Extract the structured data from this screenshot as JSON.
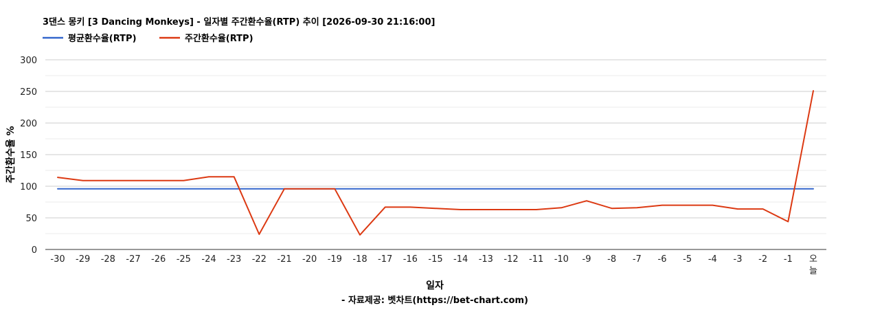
{
  "chart_data": {
    "type": "line",
    "title": "3댄스 몽키 [3 Dancing Monkeys] - 일자별 주간환수율(RTP) 추이 [2026-09-30 21:16:00]",
    "xlabel": "일자",
    "ylabel": "주간환수율 %",
    "footer": "- 자료제공: 벳차트(https://bet-chart.com)",
    "legend_position": "top-left",
    "grid": true,
    "ylim": [
      0,
      300
    ],
    "yticks": [
      "0",
      "50",
      "100",
      "150",
      "200",
      "250",
      "300"
    ],
    "categories": [
      "-30",
      "-29",
      "-28",
      "-27",
      "-26",
      "-25",
      "-24",
      "-23",
      "-22",
      "-21",
      "-20",
      "-19",
      "-18",
      "-17",
      "-16",
      "-15",
      "-14",
      "-13",
      "-12",
      "-11",
      "-10",
      "-9",
      "-8",
      "-7",
      "-6",
      "-5",
      "-4",
      "-3",
      "-2",
      "-1",
      "오늘"
    ],
    "series": [
      {
        "name": "평균환수율(RTP)",
        "color": "#3366cc",
        "values": [
          96,
          96,
          96,
          96,
          96,
          96,
          96,
          96,
          96,
          96,
          96,
          96,
          96,
          96,
          96,
          96,
          96,
          96,
          96,
          96,
          96,
          96,
          96,
          96,
          96,
          96,
          96,
          96,
          96,
          96,
          96
        ]
      },
      {
        "name": "주간환수율(RTP)",
        "color": "#dc3912",
        "values": [
          114,
          109,
          109,
          109,
          109,
          109,
          115,
          115,
          24,
          96,
          96,
          96,
          23,
          67,
          67,
          65,
          63,
          63,
          63,
          63,
          66,
          77,
          65,
          66,
          70,
          70,
          70,
          64,
          64,
          44,
          251
        ]
      }
    ]
  }
}
